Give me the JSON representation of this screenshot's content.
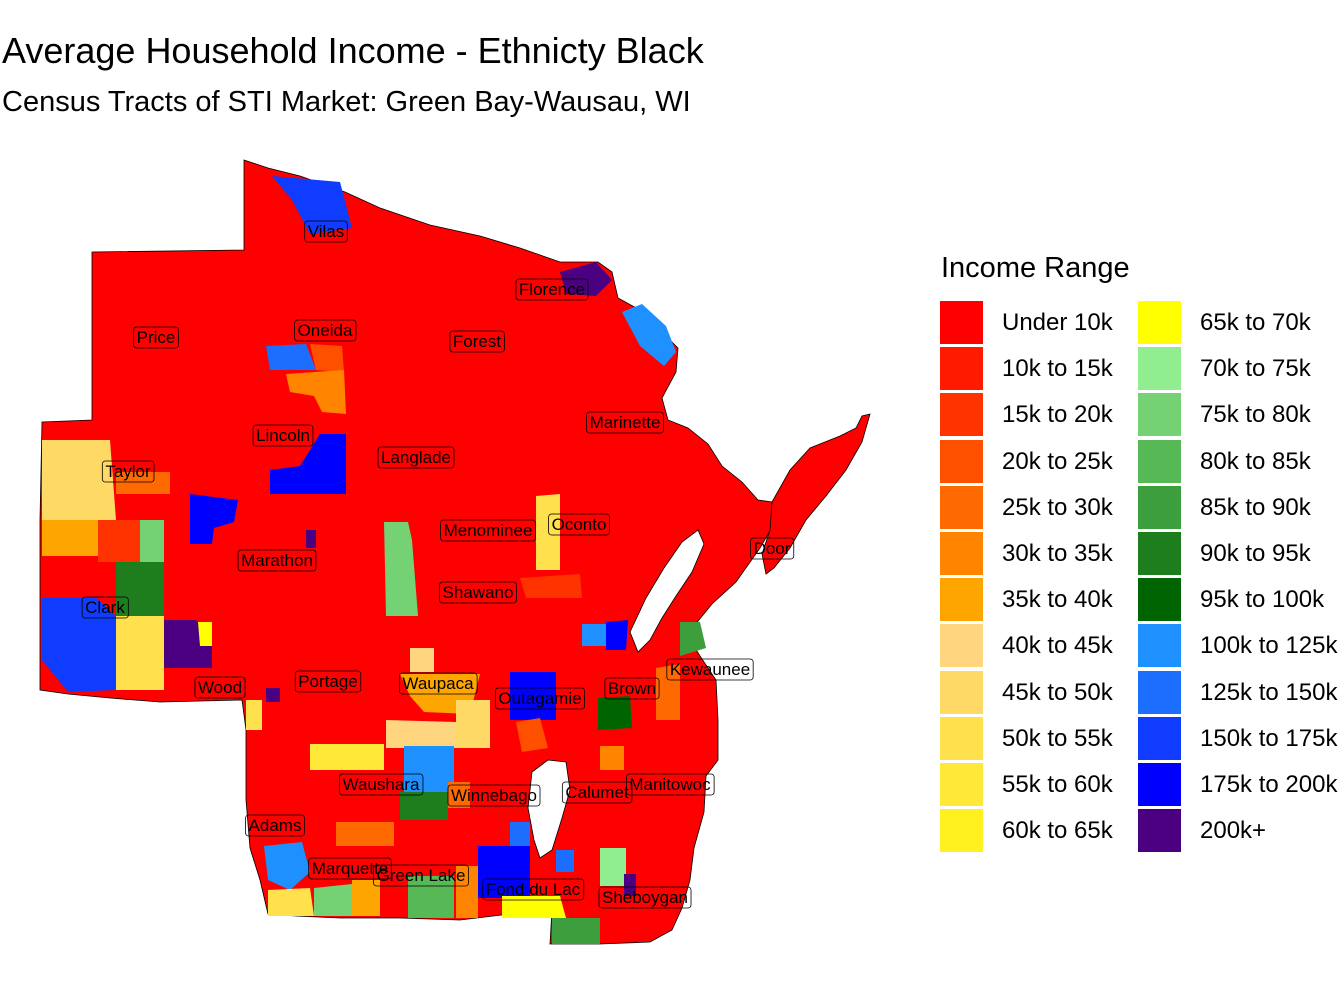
{
  "title": "Average Household Income - Ethnicty Black",
  "subtitle": "Census Tracts of STI Market: Green Bay-Wausau, WI",
  "legend": {
    "title": "Income Range",
    "items": [
      {
        "label": "Under 10k",
        "color": "#FF0000"
      },
      {
        "label": "10k to 15k",
        "color": "#FF1A00"
      },
      {
        "label": "15k to 20k",
        "color": "#FF3300"
      },
      {
        "label": "20k to 25k",
        "color": "#FF5000"
      },
      {
        "label": "25k to 30k",
        "color": "#FF6A00"
      },
      {
        "label": "30k to 35k",
        "color": "#FF8500"
      },
      {
        "label": "35k to 40k",
        "color": "#FFA500"
      },
      {
        "label": "40k to 45k",
        "color": "#FFD580"
      },
      {
        "label": "45k to 50k",
        "color": "#FFD966"
      },
      {
        "label": "50k to 55k",
        "color": "#FFE14D"
      },
      {
        "label": "55k to 60k",
        "color": "#FFE838"
      },
      {
        "label": "60k to 65k",
        "color": "#FFF020"
      },
      {
        "label": "65k to 70k",
        "color": "#FFFF00"
      },
      {
        "label": "70k to 75k",
        "color": "#90EE90"
      },
      {
        "label": "75k to 80k",
        "color": "#74D174"
      },
      {
        "label": "80k to 85k",
        "color": "#56B956"
      },
      {
        "label": "85k to 90k",
        "color": "#3C9E3C"
      },
      {
        "label": "90k to 95k",
        "color": "#1E7E1E"
      },
      {
        "label": "95k to 100k",
        "color": "#006400"
      },
      {
        "label": "100k to 125k",
        "color": "#1E90FF"
      },
      {
        "label": "125k to 150k",
        "color": "#1C6EFF"
      },
      {
        "label": "150k to 175k",
        "color": "#0F3CFF"
      },
      {
        "label": "175k to 200k",
        "color": "#0000FF"
      },
      {
        "label": "200k+",
        "color": "#4B0082"
      }
    ]
  },
  "counties": [
    {
      "name": "Vilas"
    },
    {
      "name": "Florence"
    },
    {
      "name": "Price"
    },
    {
      "name": "Oneida"
    },
    {
      "name": "Forest"
    },
    {
      "name": "Marinette"
    },
    {
      "name": "Lincoln"
    },
    {
      "name": "Langlade"
    },
    {
      "name": "Taylor"
    },
    {
      "name": "Oconto"
    },
    {
      "name": "Menominee"
    },
    {
      "name": "Door"
    },
    {
      "name": "Marathon"
    },
    {
      "name": "Shawano"
    },
    {
      "name": "Clark"
    },
    {
      "name": "Kewaunee"
    },
    {
      "name": "Wood"
    },
    {
      "name": "Portage"
    },
    {
      "name": "Waupaca"
    },
    {
      "name": "Outagamie"
    },
    {
      "name": "Brown"
    },
    {
      "name": "Waushara"
    },
    {
      "name": "Winnebago"
    },
    {
      "name": "Calumet"
    },
    {
      "name": "Manitowoc"
    },
    {
      "name": "Adams"
    },
    {
      "name": "Marquette"
    },
    {
      "name": "Green Lake"
    },
    {
      "name": "Fond du Lac"
    },
    {
      "name": "Sheboygan"
    }
  ]
}
